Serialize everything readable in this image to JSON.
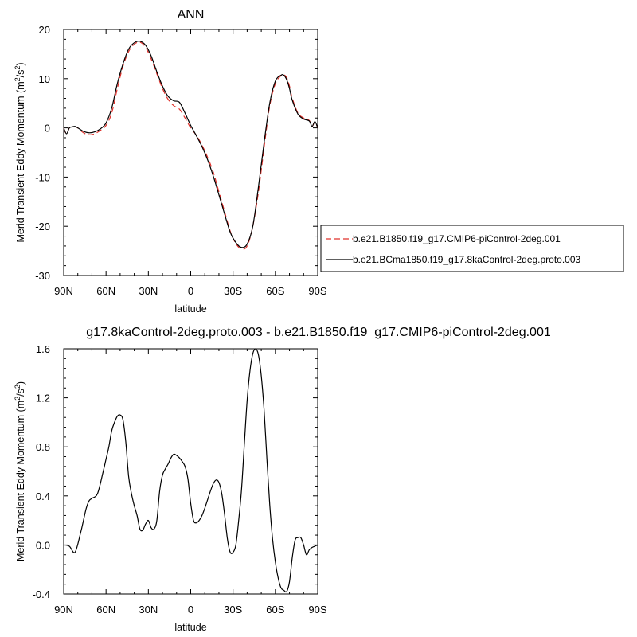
{
  "chart_data": [
    {
      "type": "line",
      "title": "ANN",
      "xlabel": "latitude",
      "ylabel": "Merid Transient Eddy Momentum (m²/s²)",
      "ylabel_parts": {
        "main": "Merid Transient Eddy Momentum (m",
        "sup1": "2",
        "mid": "/s",
        "sup2": "2",
        "end": ")"
      },
      "xlim": [
        90,
        -90
      ],
      "ylim": [
        -30,
        20
      ],
      "x_ticks": [
        90,
        60,
        30,
        0,
        -30,
        -60,
        -90
      ],
      "x_tick_labels": [
        "90N",
        "60N",
        "30N",
        "0",
        "30S",
        "60S",
        "90S"
      ],
      "y_ticks": [
        20,
        10,
        0,
        -10,
        -20,
        -30
      ],
      "y_tick_labels": [
        "20",
        "10",
        "0",
        "-10",
        "-20",
        "-30"
      ],
      "legend": {
        "placement": "right",
        "entries": [
          {
            "label": "b.e21.B1850.f19_g17.CMIP6-piControl-2deg.001",
            "color": "#e0302a",
            "dash": true
          },
          {
            "label": "b.e21.BCma1850.f19_g17.8kaControl-2deg.proto.003",
            "color": "#000000",
            "dash": false
          }
        ]
      },
      "series": [
        {
          "name": "b.e21.B1850.f19_g17.CMIP6-piControl-2deg.001",
          "color": "#e0302a",
          "dash": true,
          "x": [
            90,
            88,
            86,
            84,
            82,
            80,
            76,
            72,
            68,
            64,
            60,
            56,
            52,
            48,
            44,
            40,
            36,
            32,
            28,
            24,
            20,
            16,
            12,
            8,
            4,
            0,
            -4,
            -8,
            -12,
            -16,
            -20,
            -24,
            -28,
            -32,
            -36,
            -40,
            -44,
            -48,
            -52,
            -56,
            -60,
            -64,
            -66,
            -68,
            -70,
            -72,
            -76,
            -80,
            -84,
            -86,
            -88,
            -90
          ],
          "y": [
            0,
            -1.2,
            0,
            0.2,
            0.2,
            0,
            -1,
            -1.4,
            -1.2,
            -0.5,
            0.5,
            3,
            8,
            12.5,
            15.5,
            17,
            17.4,
            16.4,
            14,
            11,
            8,
            5.8,
            4.5,
            3.8,
            2,
            0,
            -1.5,
            -3.5,
            -6,
            -9,
            -13,
            -17,
            -21,
            -23.5,
            -24.6,
            -24,
            -20,
            -13,
            -4,
            4.5,
            9,
            10.6,
            10.8,
            10.2,
            8.5,
            6,
            3,
            2,
            1.5,
            0.3,
            1.2,
            0
          ]
        },
        {
          "name": "b.e21.BCma1850.f19_g17.8kaControl-2deg.proto.003",
          "color": "#000000",
          "dash": false,
          "x": [
            90,
            88,
            86,
            84,
            82,
            80,
            76,
            72,
            68,
            64,
            60,
            56,
            52,
            48,
            44,
            40,
            36,
            32,
            28,
            24,
            20,
            16,
            12,
            8,
            4,
            0,
            -4,
            -8,
            -12,
            -16,
            -20,
            -24,
            -28,
            -32,
            -36,
            -40,
            -44,
            -48,
            -52,
            -56,
            -60,
            -64,
            -66,
            -68,
            -70,
            -72,
            -76,
            -80,
            -84,
            -86,
            -88,
            -90
          ],
          "y": [
            0,
            -1.2,
            0,
            0.2,
            0.3,
            0,
            -0.7,
            -1,
            -0.8,
            -0.2,
            1,
            4,
            9,
            13,
            16,
            17.3,
            17.6,
            16.8,
            14.6,
            11.4,
            8.5,
            6.4,
            5.5,
            5.2,
            3,
            0.5,
            -1.6,
            -3.8,
            -6.5,
            -9.8,
            -13.6,
            -17.5,
            -21.2,
            -23.3,
            -24.3,
            -23.6,
            -20,
            -12,
            -3,
            5,
            9.5,
            10.7,
            10.7,
            9.8,
            8,
            5.6,
            2.8,
            1.8,
            1.4,
            0.3,
            1.3,
            0
          ]
        }
      ]
    },
    {
      "type": "line",
      "title": "g17.8kaControl-2deg.proto.003 - b.e21.B1850.f19_g17.CMIP6-piControl-2deg.001",
      "xlabel": "latitude",
      "ylabel": "Merid Transient Eddy Momentum (m²/s²)",
      "ylabel_parts": {
        "main": "Merid Transient Eddy Momentum (m",
        "sup1": "2",
        "mid": "/s",
        "sup2": "2",
        "end": ")"
      },
      "xlim": [
        90,
        -90
      ],
      "ylim": [
        -0.4,
        1.6
      ],
      "x_ticks": [
        90,
        60,
        30,
        0,
        -30,
        -60,
        -90
      ],
      "x_tick_labels": [
        "90N",
        "60N",
        "30N",
        "0",
        "30S",
        "60S",
        "90S"
      ],
      "y_ticks": [
        1.6,
        1.2,
        0.8,
        0.4,
        0,
        -0.4
      ],
      "y_tick_labels": [
        "1.6",
        "1.2",
        "0.8",
        "0.4",
        "0.0",
        "-0.4"
      ],
      "series": [
        {
          "color": "#000000",
          "dash": false,
          "x": [
            90,
            86,
            82,
            78,
            76,
            74,
            72,
            70,
            66,
            62,
            60,
            58,
            56,
            54,
            52,
            50,
            48,
            46,
            44,
            42,
            40,
            38,
            36,
            34,
            32,
            30,
            28,
            26,
            24,
            22,
            20,
            18,
            16,
            14,
            12,
            10,
            8,
            6,
            4,
            2,
            0,
            -2,
            -4,
            -6,
            -8,
            -10,
            -12,
            -14,
            -16,
            -18,
            -20,
            -22,
            -24,
            -26,
            -28,
            -30,
            -32,
            -34,
            -36,
            -38,
            -40,
            -42,
            -44,
            -46,
            -48,
            -50,
            -52,
            -54,
            -56,
            -58,
            -60,
            -62,
            -64,
            -66,
            -68,
            -70,
            -72,
            -74,
            -76,
            -78,
            -80,
            -82,
            -84,
            -86,
            -88,
            -90
          ],
          "y": [
            0,
            -0.01,
            -0.06,
            0.1,
            0.2,
            0.3,
            0.36,
            0.38,
            0.42,
            0.6,
            0.7,
            0.8,
            0.93,
            1.0,
            1.05,
            1.06,
            1.02,
            0.84,
            0.56,
            0.42,
            0.32,
            0.24,
            0.13,
            0.12,
            0.17,
            0.2,
            0.14,
            0.13,
            0.2,
            0.44,
            0.57,
            0.62,
            0.66,
            0.71,
            0.74,
            0.73,
            0.71,
            0.68,
            0.64,
            0.54,
            0.34,
            0.2,
            0.18,
            0.2,
            0.24,
            0.3,
            0.37,
            0.44,
            0.5,
            0.53,
            0.51,
            0.42,
            0.25,
            0.05,
            -0.06,
            -0.06,
            0.0,
            0.2,
            0.45,
            0.82,
            1.18,
            1.42,
            1.56,
            1.6,
            1.55,
            1.38,
            1.1,
            0.7,
            0.33,
            0.05,
            -0.14,
            -0.27,
            -0.35,
            -0.37,
            -0.38,
            -0.3,
            -0.1,
            0.04,
            0.06,
            0.06,
            0.0,
            -0.08,
            -0.04,
            -0.02,
            -0.01,
            0
          ]
        }
      ]
    }
  ]
}
